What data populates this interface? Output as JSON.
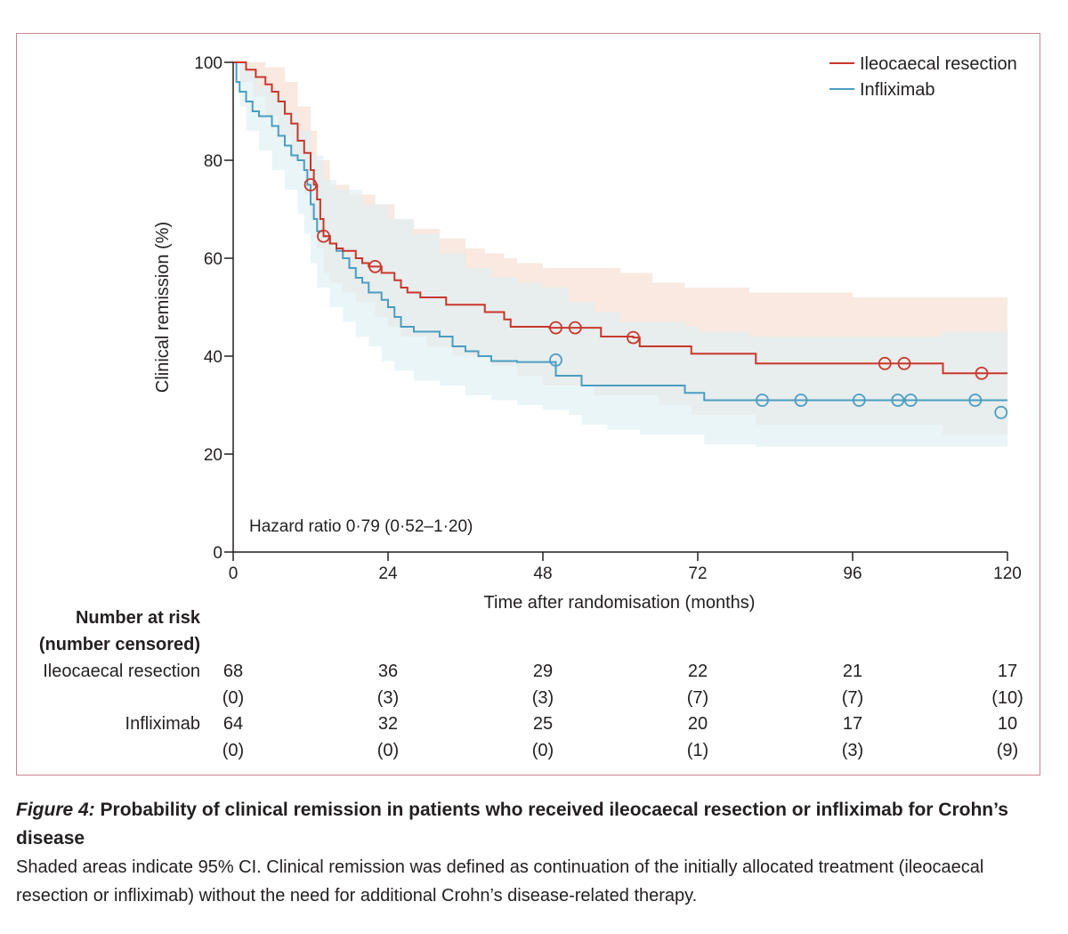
{
  "chart_data": {
    "type": "line",
    "subtype": "kaplan-meier",
    "xlabel": "Time after randomisation (months)",
    "ylabel": "Clinical remission (%)",
    "xlim": [
      0,
      120
    ],
    "ylim": [
      0,
      100
    ],
    "xticks": [
      0,
      24,
      48,
      72,
      96,
      120
    ],
    "yticks": [
      0,
      20,
      40,
      60,
      80,
      100
    ],
    "grid": false,
    "legend_position": "top-right",
    "annotation": "Hazard ratio 0·79 (0·52–1·20)",
    "series": [
      {
        "name": "Ileocaecal resection",
        "color": "#c8372d",
        "ci_color": "#f6ddd0",
        "steps": [
          [
            0,
            100
          ],
          [
            2,
            98.5
          ],
          [
            3.5,
            97
          ],
          [
            5,
            95.5
          ],
          [
            6,
            94
          ],
          [
            7,
            92
          ],
          [
            8,
            89.5
          ],
          [
            9,
            87.5
          ],
          [
            10,
            84
          ],
          [
            11,
            81.5
          ],
          [
            12,
            78
          ],
          [
            12.5,
            75
          ],
          [
            13,
            72
          ],
          [
            13.5,
            68
          ],
          [
            14,
            64.5
          ],
          [
            15,
            63
          ],
          [
            16,
            62
          ],
          [
            17,
            61.5
          ],
          [
            19,
            60
          ],
          [
            20,
            59
          ],
          [
            21,
            58.3
          ],
          [
            23,
            57
          ],
          [
            25,
            55.5
          ],
          [
            26,
            54
          ],
          [
            27,
            53
          ],
          [
            29,
            52
          ],
          [
            33,
            50.5
          ],
          [
            39,
            49
          ],
          [
            42,
            47.5
          ],
          [
            43,
            46
          ],
          [
            49,
            45.8
          ],
          [
            57,
            44
          ],
          [
            62,
            43.8
          ],
          [
            63,
            42
          ],
          [
            71,
            40.5
          ],
          [
            81,
            38.5
          ],
          [
            101,
            38.5
          ],
          [
            110,
            36.5
          ],
          [
            120,
            36.5
          ]
        ],
        "ci_upper": [
          [
            0,
            100
          ],
          [
            3,
            100
          ],
          [
            5,
            99
          ],
          [
            8,
            96
          ],
          [
            10,
            91
          ],
          [
            12,
            86
          ],
          [
            13,
            80
          ],
          [
            15,
            75
          ],
          [
            18,
            73
          ],
          [
            22,
            71
          ],
          [
            25,
            68
          ],
          [
            28,
            66
          ],
          [
            32,
            64
          ],
          [
            36,
            62
          ],
          [
            39,
            61
          ],
          [
            42,
            60
          ],
          [
            44,
            59
          ],
          [
            48,
            58
          ],
          [
            60,
            57
          ],
          [
            65,
            55
          ],
          [
            70,
            54
          ],
          [
            80,
            53
          ],
          [
            96,
            52
          ],
          [
            108,
            52
          ],
          [
            110,
            52
          ],
          [
            120,
            52
          ]
        ],
        "ci_lower": [
          [
            0,
            100
          ],
          [
            1,
            96
          ],
          [
            3,
            93
          ],
          [
            5,
            89
          ],
          [
            7,
            85
          ],
          [
            9,
            80
          ],
          [
            11,
            73
          ],
          [
            12,
            68
          ],
          [
            13,
            62
          ],
          [
            14,
            57
          ],
          [
            15,
            55
          ],
          [
            17,
            53
          ],
          [
            19,
            51
          ],
          [
            22,
            48
          ],
          [
            24,
            46
          ],
          [
            26,
            44
          ],
          [
            30,
            42
          ],
          [
            34,
            40
          ],
          [
            40,
            38
          ],
          [
            44,
            36
          ],
          [
            48,
            34
          ],
          [
            56,
            32
          ],
          [
            66,
            30
          ],
          [
            71,
            28
          ],
          [
            81,
            26
          ],
          [
            101,
            26
          ],
          [
            110,
            24
          ],
          [
            120,
            24
          ]
        ],
        "censored": [
          [
            12,
            75
          ],
          [
            14,
            64.5
          ],
          [
            22,
            58.3
          ],
          [
            50,
            45.8
          ],
          [
            53,
            45.8
          ],
          [
            62,
            43.8
          ],
          [
            101,
            38.5
          ],
          [
            104,
            38.5
          ],
          [
            116,
            36.5
          ]
        ],
        "at_risk": [
          68,
          36,
          29,
          22,
          21,
          17
        ],
        "censored_counts": [
          "(0)",
          "(3)",
          "(3)",
          "(7)",
          "(7)",
          "(10)"
        ]
      },
      {
        "name": "Infliximab",
        "color": "#4a9dc3",
        "ci_color": "#dfeff4",
        "steps": [
          [
            0,
            100
          ],
          [
            0.5,
            96
          ],
          [
            1,
            94
          ],
          [
            2,
            92
          ],
          [
            3,
            90
          ],
          [
            4,
            89
          ],
          [
            6,
            87
          ],
          [
            7,
            85
          ],
          [
            8,
            83
          ],
          [
            9,
            81
          ],
          [
            10,
            80
          ],
          [
            11,
            78
          ],
          [
            11.5,
            75
          ],
          [
            12,
            71
          ],
          [
            12.5,
            68
          ],
          [
            13,
            65.5
          ],
          [
            14,
            64.5
          ],
          [
            15,
            63
          ],
          [
            16,
            61.5
          ],
          [
            17,
            60
          ],
          [
            18,
            58
          ],
          [
            19,
            56
          ],
          [
            20,
            55
          ],
          [
            21,
            53
          ],
          [
            23,
            51.5
          ],
          [
            24,
            50
          ],
          [
            25,
            48
          ],
          [
            26,
            46
          ],
          [
            28,
            45
          ],
          [
            32,
            44
          ],
          [
            34,
            42
          ],
          [
            36,
            41
          ],
          [
            38,
            40
          ],
          [
            40,
            39
          ],
          [
            44,
            38.8
          ],
          [
            49,
            38.8
          ],
          [
            50,
            36
          ],
          [
            54,
            34
          ],
          [
            58,
            34
          ],
          [
            70,
            32.5
          ],
          [
            73,
            31
          ],
          [
            120,
            31
          ]
        ],
        "ci_upper": [
          [
            0,
            100
          ],
          [
            2,
            98
          ],
          [
            4,
            95
          ],
          [
            6,
            93
          ],
          [
            8,
            90
          ],
          [
            10,
            86
          ],
          [
            12,
            81
          ],
          [
            14,
            76
          ],
          [
            16,
            74
          ],
          [
            20,
            71
          ],
          [
            24,
            68
          ],
          [
            28,
            65
          ],
          [
            32,
            61
          ],
          [
            36,
            58
          ],
          [
            40,
            56
          ],
          [
            44,
            55
          ],
          [
            48,
            54
          ],
          [
            52,
            51
          ],
          [
            56,
            49
          ],
          [
            60,
            47
          ],
          [
            70,
            46
          ],
          [
            72,
            45
          ],
          [
            80,
            44
          ],
          [
            96,
            44
          ],
          [
            108,
            44
          ],
          [
            110,
            45
          ],
          [
            120,
            45
          ]
        ],
        "ci_lower": [
          [
            0,
            100
          ],
          [
            1,
            91
          ],
          [
            2,
            86
          ],
          [
            4,
            82
          ],
          [
            6,
            78
          ],
          [
            8,
            74
          ],
          [
            10,
            69
          ],
          [
            11,
            65
          ],
          [
            12,
            59
          ],
          [
            13,
            54
          ],
          [
            15,
            50
          ],
          [
            17,
            47
          ],
          [
            19,
            44
          ],
          [
            21,
            42
          ],
          [
            23,
            39
          ],
          [
            25,
            37
          ],
          [
            28,
            35
          ],
          [
            32,
            34
          ],
          [
            36,
            32
          ],
          [
            40,
            31
          ],
          [
            44,
            30
          ],
          [
            48,
            29
          ],
          [
            52,
            28
          ],
          [
            54,
            26
          ],
          [
            58,
            25
          ],
          [
            63,
            24
          ],
          [
            73,
            22
          ],
          [
            81,
            21.5
          ],
          [
            120,
            21.5
          ]
        ],
        "censored": [
          [
            50,
            39.2
          ],
          [
            82,
            31
          ],
          [
            88,
            31
          ],
          [
            97,
            31
          ],
          [
            103,
            31
          ],
          [
            105,
            31
          ],
          [
            115,
            31
          ],
          [
            119,
            28.5
          ]
        ],
        "at_risk": [
          64,
          32,
          25,
          20,
          17,
          10
        ],
        "censored_counts": [
          "(0)",
          "(0)",
          "(0)",
          "(1)",
          "(3)",
          "(9)"
        ]
      }
    ],
    "risk_table": {
      "heading_line1": "Number at risk",
      "heading_line2": "(number censored)",
      "times": [
        0,
        24,
        48,
        72,
        96,
        120
      ]
    }
  },
  "caption": {
    "figure_label": "Figure 4:",
    "title": "Probability of clinical remission in patients who received ileocaecal resection or infliximab for Crohn’s disease",
    "text": "Shaded areas indicate 95% CI. Clinical remission was defined as continuation of the initially allocated treatment (ileocaecal resection or infliximab) without the need for additional Crohn’s disease-related therapy."
  }
}
